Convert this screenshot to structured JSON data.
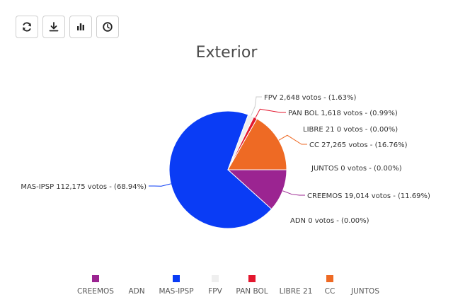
{
  "toolbar": {
    "buttons": [
      {
        "icon": "refresh-icon"
      },
      {
        "icon": "download-icon"
      },
      {
        "icon": "bar-chart-icon"
      },
      {
        "icon": "clock-icon"
      }
    ]
  },
  "chart_data": {
    "type": "pie",
    "title": "Exterior",
    "unit": "votos",
    "slices": [
      {
        "name": "CREEMOS",
        "value": 19014,
        "percent": "11.69%",
        "color": "#9B2491",
        "label": "CREEMOS 19,014 votos - (11.69%)"
      },
      {
        "name": "ADN",
        "value": 0,
        "percent": "0.00%",
        "color": "#1B3A8F",
        "label": "ADN 0 votos - (0.00%)"
      },
      {
        "name": "MAS-IPSP",
        "value": 112175,
        "percent": "68.94%",
        "color": "#0A3CF5",
        "label": "MAS-IPSP 112,175 votos - (68.94%)"
      },
      {
        "name": "FPV",
        "value": 2648,
        "percent": "1.63%",
        "color": "#EFEFEF",
        "label": "FPV 2,648 votos - (1.63%)"
      },
      {
        "name": "PAN BOL",
        "value": 1618,
        "percent": "0.99%",
        "color": "#E3172E",
        "label": "PAN BOL 1,618 votos - (0.99%)"
      },
      {
        "name": "LIBRE 21",
        "value": 0,
        "percent": "0.00%",
        "color": "#D8D8D8",
        "label": "LIBRE 21 0 votos - (0.00%)"
      },
      {
        "name": "CC",
        "value": 27265,
        "percent": "16.76%",
        "color": "#EE6A24",
        "label": "CC 27,265 votos - (16.76%)"
      },
      {
        "name": "JUNTOS",
        "value": 0,
        "percent": "0.00%",
        "color": "#FFFFFF",
        "label": "JUNTOS 0 votos - (0.00%)"
      }
    ],
    "legend": [
      {
        "name": "CREEMOS",
        "color": "#9B2491",
        "show_swatch": true
      },
      {
        "name": "ADN",
        "color": "#1B3A8F",
        "show_swatch": false
      },
      {
        "name": "MAS-IPSP",
        "color": "#0A3CF5",
        "show_swatch": true
      },
      {
        "name": "FPV",
        "color": "#EFEFEF",
        "show_swatch": true
      },
      {
        "name": "PAN BOL",
        "color": "#E3172E",
        "show_swatch": true
      },
      {
        "name": "LIBRE 21",
        "color": "#D8D8D8",
        "show_swatch": false
      },
      {
        "name": "CC",
        "color": "#EE6A24",
        "show_swatch": true
      },
      {
        "name": "JUNTOS",
        "color": "#FFFFFF",
        "show_swatch": false
      }
    ],
    "legend_position": "bottom"
  }
}
